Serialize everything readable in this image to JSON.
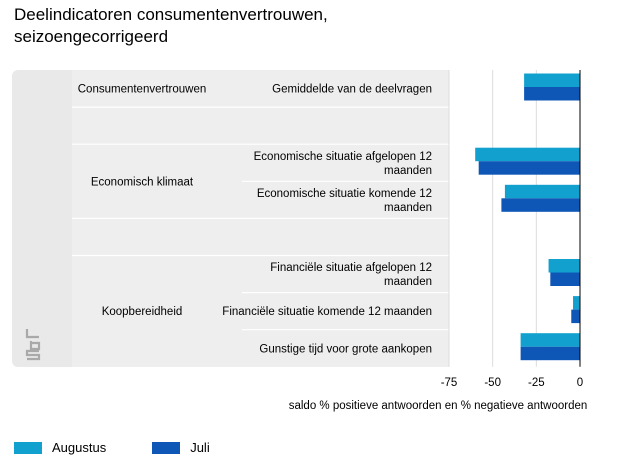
{
  "chart_data": {
    "type": "bar",
    "orientation": "horizontal",
    "title": "Deelindicatoren consumentenvertrouwen, seizoengecorrigeerd",
    "xlabel": "saldo % positieve antwoorden en % negatieve antwoorden",
    "ylabel": "",
    "xlim": [
      -75,
      0
    ],
    "xticks": [
      -75,
      -50,
      -25,
      0
    ],
    "xtick_labels": [
      "-75",
      "-50",
      "-25",
      "0"
    ],
    "grid": true,
    "legend_position": "bottom-left",
    "groups": [
      {
        "name": "Consumentenvertrouwen",
        "items": [
          {
            "label": "Gemiddelde van de deelvragen",
            "values": [
              -32,
              -32
            ]
          }
        ]
      },
      {
        "name": "Economisch klimaat",
        "items": [
          {
            "label": "Economische situatie afgelopen 12 maanden",
            "values": [
              -60,
              -58
            ]
          },
          {
            "label": "Economische situatie komende 12 maanden",
            "values": [
              -43,
              -45
            ]
          }
        ]
      },
      {
        "name": "Koopbereidheid",
        "items": [
          {
            "label": "Financiële situatie afgelopen 12 maanden",
            "values": [
              -18,
              -17
            ]
          },
          {
            "label": "Financiële situatie komende 12 maanden",
            "values": [
              -4,
              -5
            ]
          },
          {
            "label": "Gunstige tijd voor grote aankopen",
            "values": [
              -34,
              -34
            ]
          }
        ]
      }
    ],
    "series": [
      {
        "name": "Augustus",
        "color": "#12a1cf"
      },
      {
        "name": "Juli",
        "color": "#0e57b7"
      }
    ]
  },
  "branding": {
    "logo_icon": "cbs-logo-icon"
  }
}
